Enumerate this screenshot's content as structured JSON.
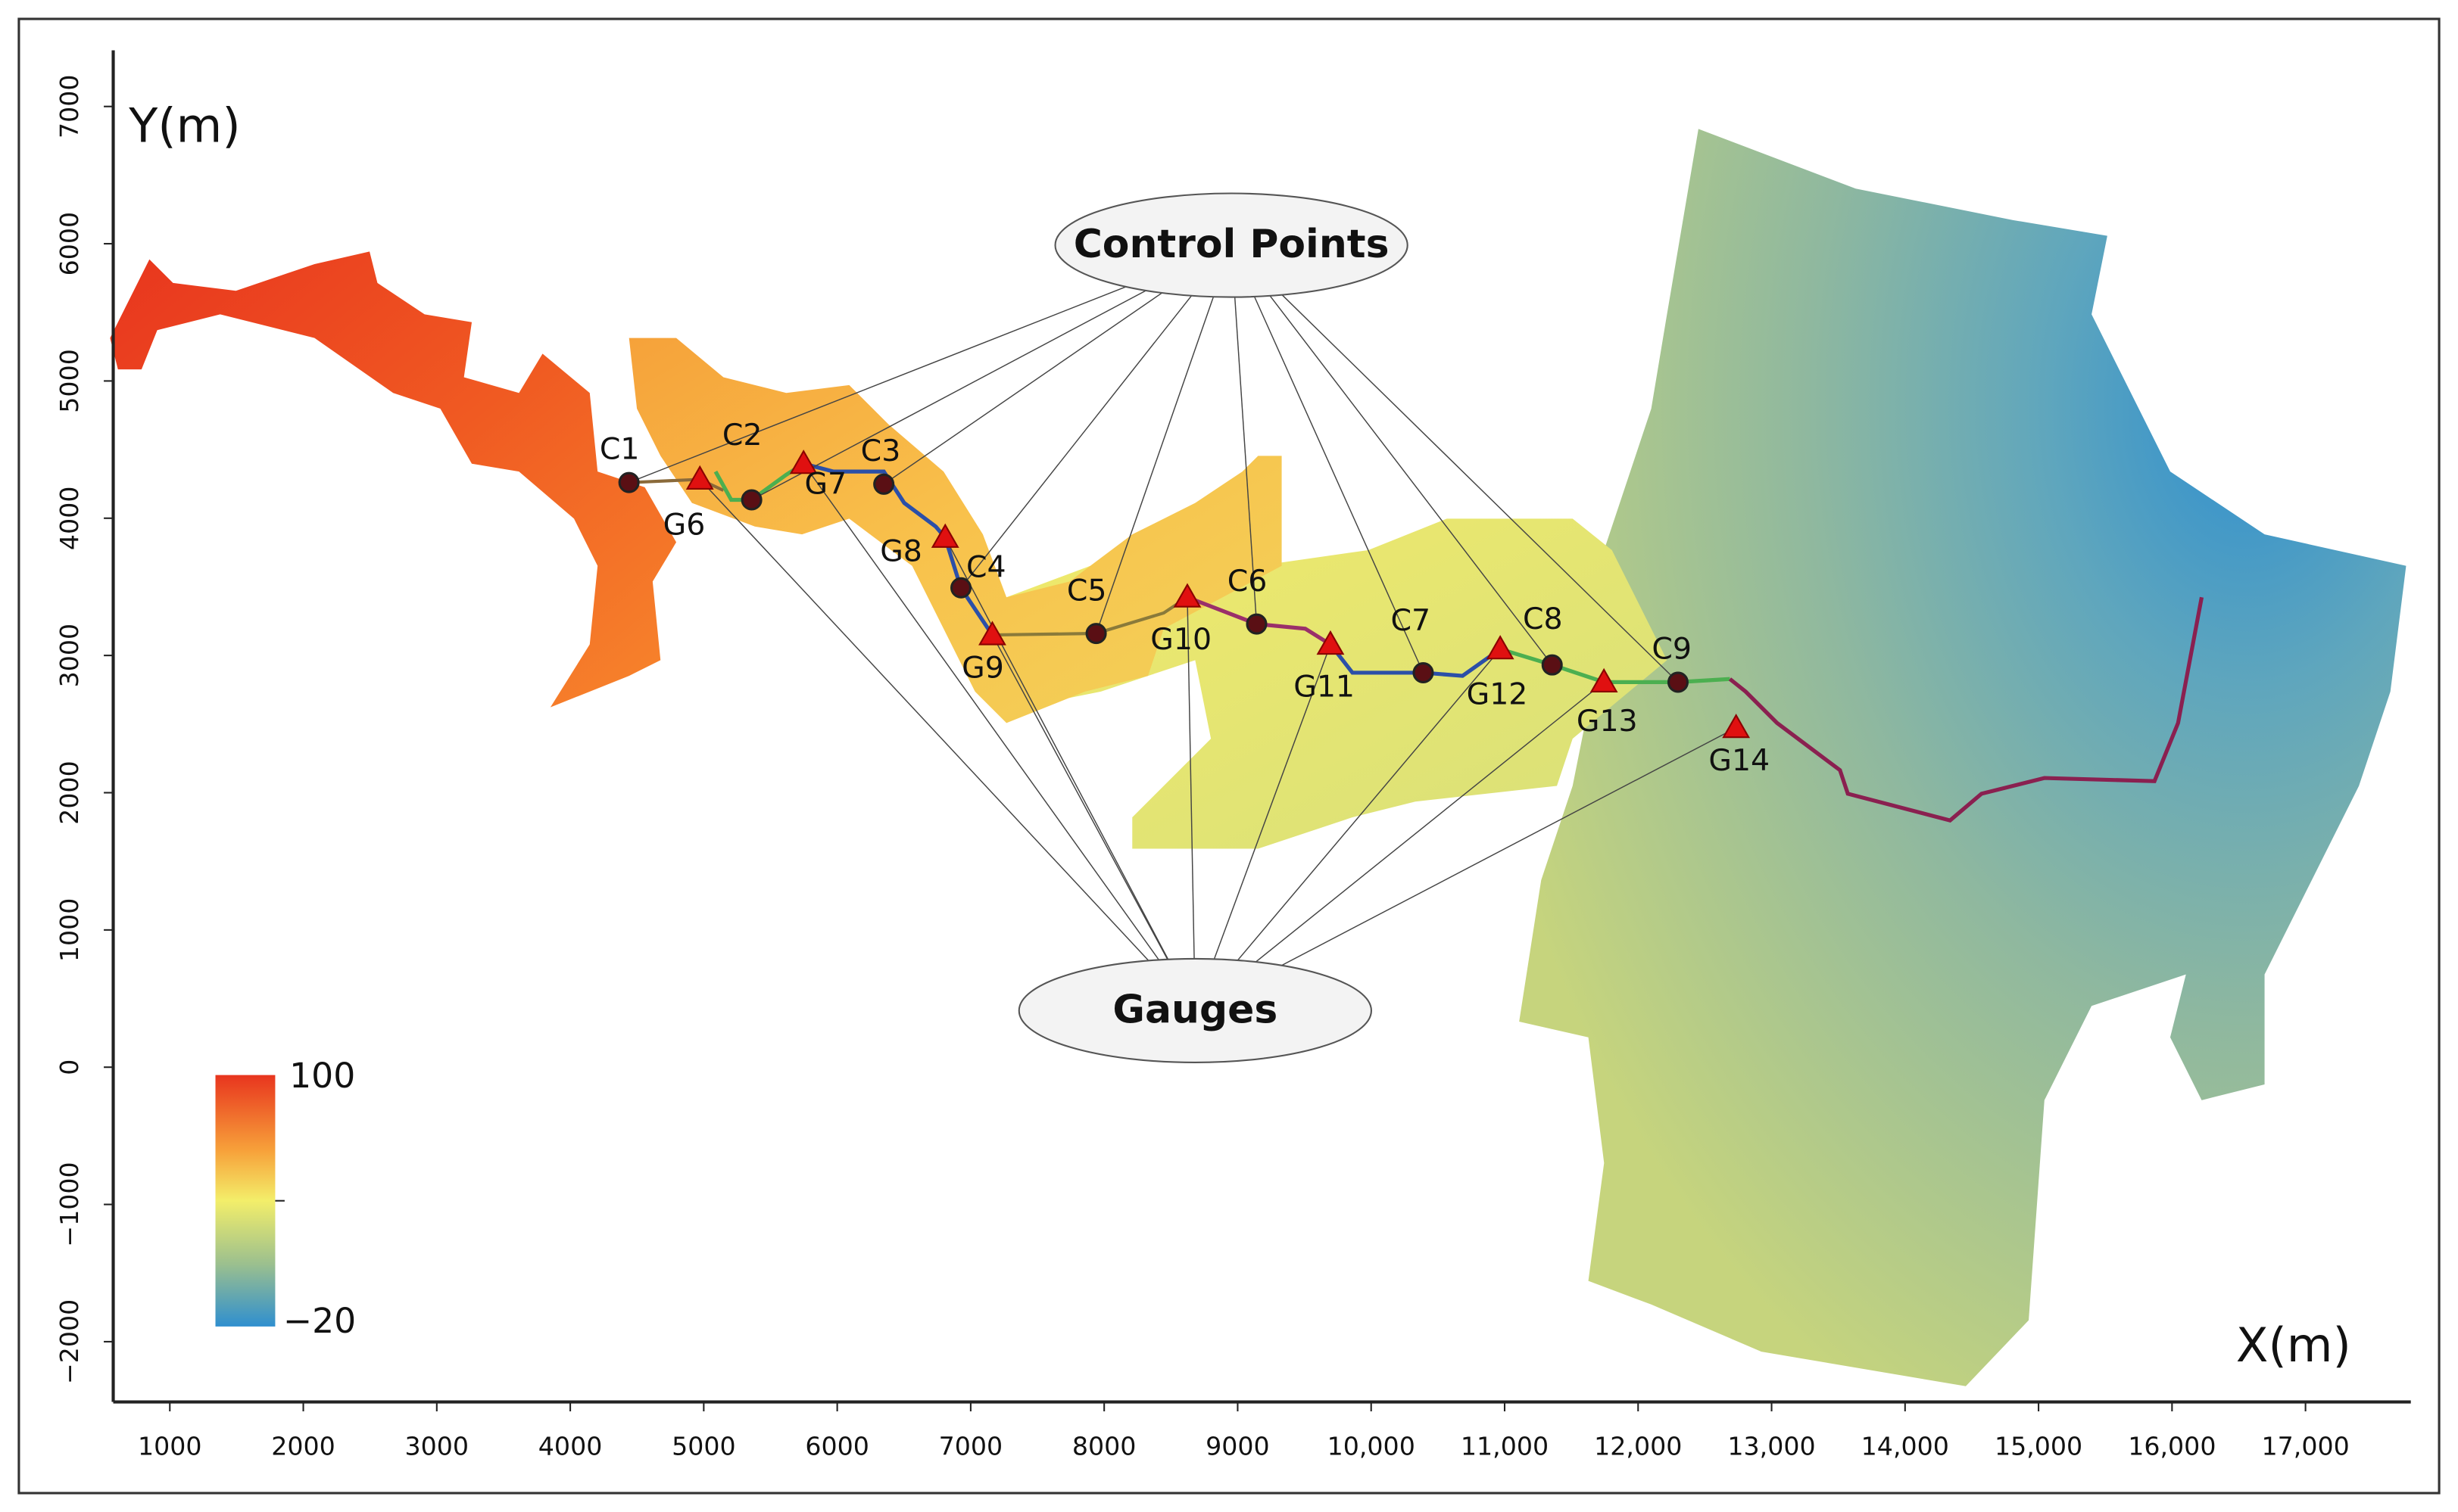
{
  "axes": {
    "x_label": "X(m)",
    "y_label": "Y(m)",
    "xlim": [
      576,
      17789
    ],
    "ylim": [
      -2439,
      7409
    ],
    "xticks": [
      1000,
      2000,
      3000,
      4000,
      5000,
      6000,
      7000,
      8000,
      9000,
      {
        "value": 10000,
        "label": "10,000"
      },
      {
        "value": 11000,
        "label": "11,000"
      },
      {
        "value": 12000,
        "label": "12,000"
      },
      {
        "value": 13000,
        "label": "13,000"
      },
      {
        "value": 14000,
        "label": "14,000"
      },
      {
        "value": 15000,
        "label": "15,000"
      },
      {
        "value": 16000,
        "label": "16,000"
      },
      {
        "value": 17000,
        "label": "17,000"
      }
    ],
    "yticks": [
      {
        "value": -2000,
        "label": "−2000"
      },
      {
        "value": -1000,
        "label": "−1000"
      },
      0,
      1000,
      2000,
      3000,
      4000,
      5000,
      6000,
      7000
    ]
  },
  "colorbar": {
    "max_label": "100",
    "min_label": "−20"
  },
  "callouts": {
    "control_points": "Control Points",
    "gauges": "Gauges"
  },
  "control_points": [
    {
      "label": "C1",
      "x": 4440,
      "y": 4260
    },
    {
      "label": "C2",
      "x": 5359,
      "y": 4134
    },
    {
      "label": "C3",
      "x": 6349,
      "y": 4248
    },
    {
      "label": "C4",
      "x": 6927,
      "y": 3493
    },
    {
      "label": "C5",
      "x": 7940,
      "y": 3160
    },
    {
      "label": "C6",
      "x": 9142,
      "y": 3229
    },
    {
      "label": "C7",
      "x": 10390,
      "y": 2874
    },
    {
      "label": "C8",
      "x": 11356,
      "y": 2931
    },
    {
      "label": "C9",
      "x": 12299,
      "y": 2805
    }
  ],
  "gauges": [
    {
      "label": "G6",
      "x": 4971,
      "y": 4283
    },
    {
      "label": "G7",
      "x": 5748,
      "y": 4397
    },
    {
      "label": "G8",
      "x": 6809,
      "y": 3859
    },
    {
      "label": "G9",
      "x": 7162,
      "y": 3149
    },
    {
      "label": "G10",
      "x": 8623,
      "y": 3424
    },
    {
      "label": "G11",
      "x": 9695,
      "y": 3080
    },
    {
      "label": "G12",
      "x": 10967,
      "y": 3046
    },
    {
      "label": "G13",
      "x": 11744,
      "y": 2805
    },
    {
      "label": "G14",
      "x": 12734,
      "y": 2473
    }
  ]
}
